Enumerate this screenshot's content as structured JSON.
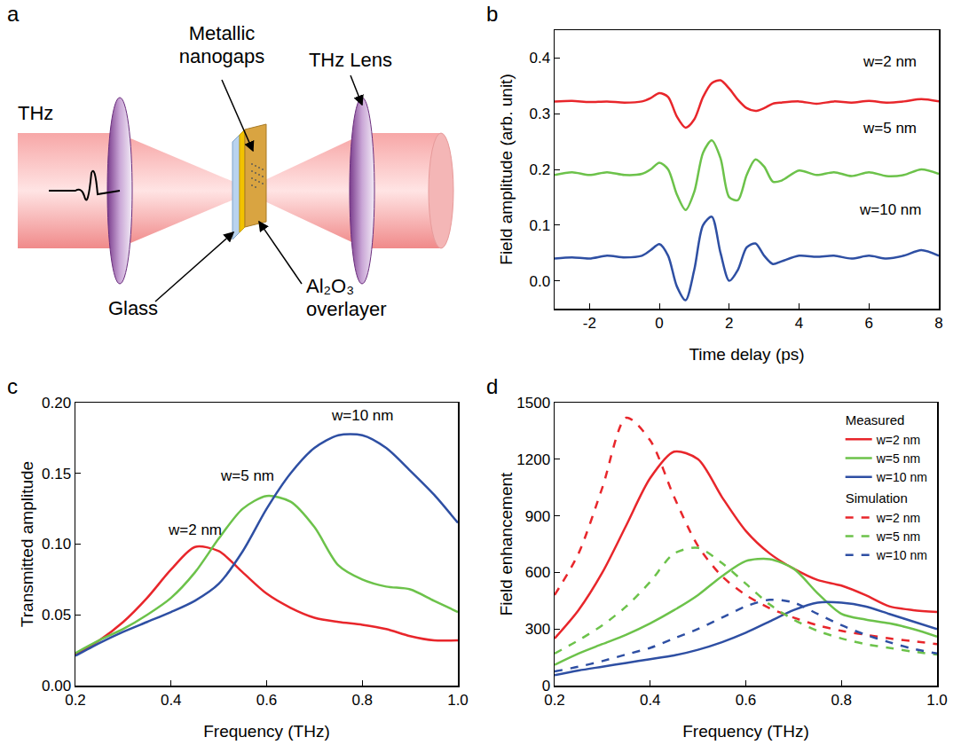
{
  "diagram": {
    "panel": "a",
    "labels": [
      "THz",
      "Metallic nanogaps",
      "THz Lens",
      "Glass",
      "Al₂O₃ overlayer"
    ]
  },
  "chart_data": [
    {
      "panel": "b",
      "type": "line",
      "x_label": "Time delay (ps)",
      "y_label": "Field amplitude (arb. unit)",
      "xlim": [
        -3,
        8
      ],
      "xticks": [
        -2,
        0,
        2,
        4,
        6,
        8
      ],
      "ylim": [
        -0.05,
        0.45
      ],
      "yticks": [
        {
          "value": 0,
          "label": "0.0"
        },
        0.1,
        0.2,
        0.3,
        0.4
      ],
      "grid": false,
      "x": [
        -3,
        -2.5,
        -2,
        -1.5,
        -1,
        -0.5,
        -0.25,
        0,
        0.25,
        0.5,
        0.75,
        1,
        1.25,
        1.5,
        1.75,
        2,
        2.25,
        2.5,
        2.75,
        3,
        3.25,
        3.5,
        4,
        4.5,
        5,
        5.5,
        6,
        6.5,
        7,
        7.5,
        8
      ],
      "series": [
        {
          "name": "w=2 nm",
          "color": "#e8262b",
          "line_style": "solid",
          "values": [
            0.322,
            0.323,
            0.321,
            0.322,
            0.32,
            0.322,
            0.328,
            0.337,
            0.33,
            0.295,
            0.275,
            0.29,
            0.33,
            0.355,
            0.36,
            0.345,
            0.325,
            0.31,
            0.305,
            0.31,
            0.318,
            0.32,
            0.322,
            0.318,
            0.322,
            0.32,
            0.323,
            0.32,
            0.322,
            0.326,
            0.322
          ]
        },
        {
          "name": "w=5 nm",
          "color": "#6cc24a",
          "line_style": "solid",
          "values": [
            0.19,
            0.195,
            0.19,
            0.195,
            0.19,
            0.192,
            0.2,
            0.212,
            0.2,
            0.155,
            0.127,
            0.16,
            0.23,
            0.252,
            0.22,
            0.15,
            0.145,
            0.19,
            0.218,
            0.205,
            0.178,
            0.18,
            0.198,
            0.19,
            0.195,
            0.188,
            0.195,
            0.188,
            0.19,
            0.2,
            0.192
          ]
        },
        {
          "name": "w=10 nm",
          "color": "#2e4fa3",
          "line_style": "solid",
          "values": [
            0.04,
            0.042,
            0.04,
            0.045,
            0.042,
            0.045,
            0.055,
            0.066,
            0.045,
            -0.01,
            -0.035,
            0.02,
            0.1,
            0.115,
            0.05,
            0.0,
            0.02,
            0.06,
            0.067,
            0.045,
            0.03,
            0.035,
            0.045,
            0.043,
            0.045,
            0.04,
            0.045,
            0.04,
            0.045,
            0.055,
            0.045
          ]
        }
      ],
      "annotations": [
        {
          "text": "w=2 nm",
          "x": 6.6,
          "y": 0.375
        },
        {
          "text": "w=5 nm",
          "x": 6.6,
          "y": 0.255
        },
        {
          "text": "w=10 nm",
          "x": 6.6,
          "y": 0.11
        }
      ]
    },
    {
      "panel": "c",
      "type": "line",
      "x_label": "Frequency (THz)",
      "y_label": "Transmitted amplitude",
      "xlim": [
        0.2,
        1.0
      ],
      "xticks": [
        0.2,
        0.4,
        0.6,
        0.8,
        {
          "value": 1.0,
          "label": "1.0"
        }
      ],
      "ylim": [
        0,
        0.2
      ],
      "yticks": [
        {
          "value": 0,
          "label": "0.00"
        },
        0.05,
        {
          "value": 0.1,
          "label": "0.10"
        },
        0.15,
        {
          "value": 0.2,
          "label": "0.20"
        }
      ],
      "grid": false,
      "x": [
        0.2,
        0.25,
        0.3,
        0.35,
        0.4,
        0.45,
        0.5,
        0.55,
        0.6,
        0.65,
        0.7,
        0.75,
        0.8,
        0.85,
        0.9,
        0.95,
        1.0
      ],
      "series": [
        {
          "name": "w=2 nm",
          "color": "#e8262b",
          "line_style": "solid",
          "values": [
            0.022,
            0.032,
            0.045,
            0.062,
            0.082,
            0.098,
            0.095,
            0.08,
            0.065,
            0.055,
            0.048,
            0.045,
            0.043,
            0.04,
            0.035,
            0.032,
            0.032
          ]
        },
        {
          "name": "w=5 nm",
          "color": "#6cc24a",
          "line_style": "solid",
          "values": [
            0.023,
            0.032,
            0.04,
            0.05,
            0.062,
            0.08,
            0.104,
            0.125,
            0.134,
            0.13,
            0.112,
            0.085,
            0.075,
            0.07,
            0.068,
            0.06,
            0.052
          ]
        },
        {
          "name": "w=10 nm",
          "color": "#2e4fa3",
          "line_style": "solid",
          "values": [
            0.021,
            0.03,
            0.038,
            0.045,
            0.052,
            0.06,
            0.072,
            0.095,
            0.125,
            0.15,
            0.168,
            0.177,
            0.177,
            0.168,
            0.152,
            0.135,
            0.115
          ]
        }
      ],
      "annotations": [
        {
          "text": "w=2 nm",
          "x": 0.45,
          "y": 0.103
        },
        {
          "text": "w=5 nm",
          "x": 0.56,
          "y": 0.141
        },
        {
          "text": "w=10 nm",
          "x": 0.8,
          "y": 0.184
        }
      ]
    },
    {
      "panel": "d",
      "type": "line",
      "x_label": "Frequency (THz)",
      "y_label": "Field enhancement",
      "xlim": [
        0.2,
        1.0
      ],
      "xticks": [
        0.2,
        0.4,
        0.6,
        0.8,
        {
          "value": 1.0,
          "label": "1.0"
        }
      ],
      "ylim": [
        0,
        1500
      ],
      "yticks": [
        0,
        300,
        600,
        900,
        1200,
        1500
      ],
      "grid": false,
      "legend": "top right",
      "x": [
        0.2,
        0.25,
        0.3,
        0.35,
        0.4,
        0.45,
        0.5,
        0.55,
        0.6,
        0.65,
        0.7,
        0.75,
        0.8,
        0.85,
        0.9,
        0.95,
        1.0
      ],
      "series": [
        {
          "group": "Measured",
          "name": "w=2 nm",
          "color": "#e8262b",
          "line_style": "solid",
          "values": [
            250,
            400,
            600,
            850,
            1100,
            1240,
            1200,
            1000,
            820,
            700,
            620,
            560,
            530,
            480,
            420,
            400,
            390
          ]
        },
        {
          "group": "Measured",
          "name": "w=5 nm",
          "color": "#6cc24a",
          "line_style": "solid",
          "values": [
            110,
            170,
            220,
            270,
            330,
            400,
            480,
            580,
            660,
            670,
            620,
            490,
            380,
            350,
            330,
            300,
            260
          ]
        },
        {
          "group": "Measured",
          "name": "w=10 nm",
          "color": "#2e4fa3",
          "line_style": "solid",
          "values": [
            55,
            80,
            100,
            120,
            140,
            160,
            190,
            230,
            280,
            340,
            400,
            440,
            440,
            420,
            380,
            340,
            300
          ]
        },
        {
          "group": "Simulation",
          "name": "w=2 nm",
          "color": "#e8262b",
          "line_style": "dash",
          "values": [
            480,
            700,
            1050,
            1420,
            1300,
            1000,
            740,
            580,
            480,
            410,
            360,
            320,
            290,
            270,
            250,
            235,
            220
          ]
        },
        {
          "group": "Simulation",
          "name": "w=5 nm",
          "color": "#6cc24a",
          "line_style": "dash",
          "values": [
            170,
            240,
            320,
            420,
            550,
            700,
            730,
            650,
            540,
            430,
            350,
            290,
            250,
            220,
            200,
            180,
            165
          ]
        },
        {
          "group": "Simulation",
          "name": "w=10 nm",
          "color": "#2e4fa3",
          "line_style": "dash",
          "values": [
            75,
            100,
            130,
            165,
            200,
            250,
            300,
            360,
            420,
            455,
            440,
            380,
            320,
            270,
            230,
            195,
            170
          ]
        }
      ]
    }
  ]
}
